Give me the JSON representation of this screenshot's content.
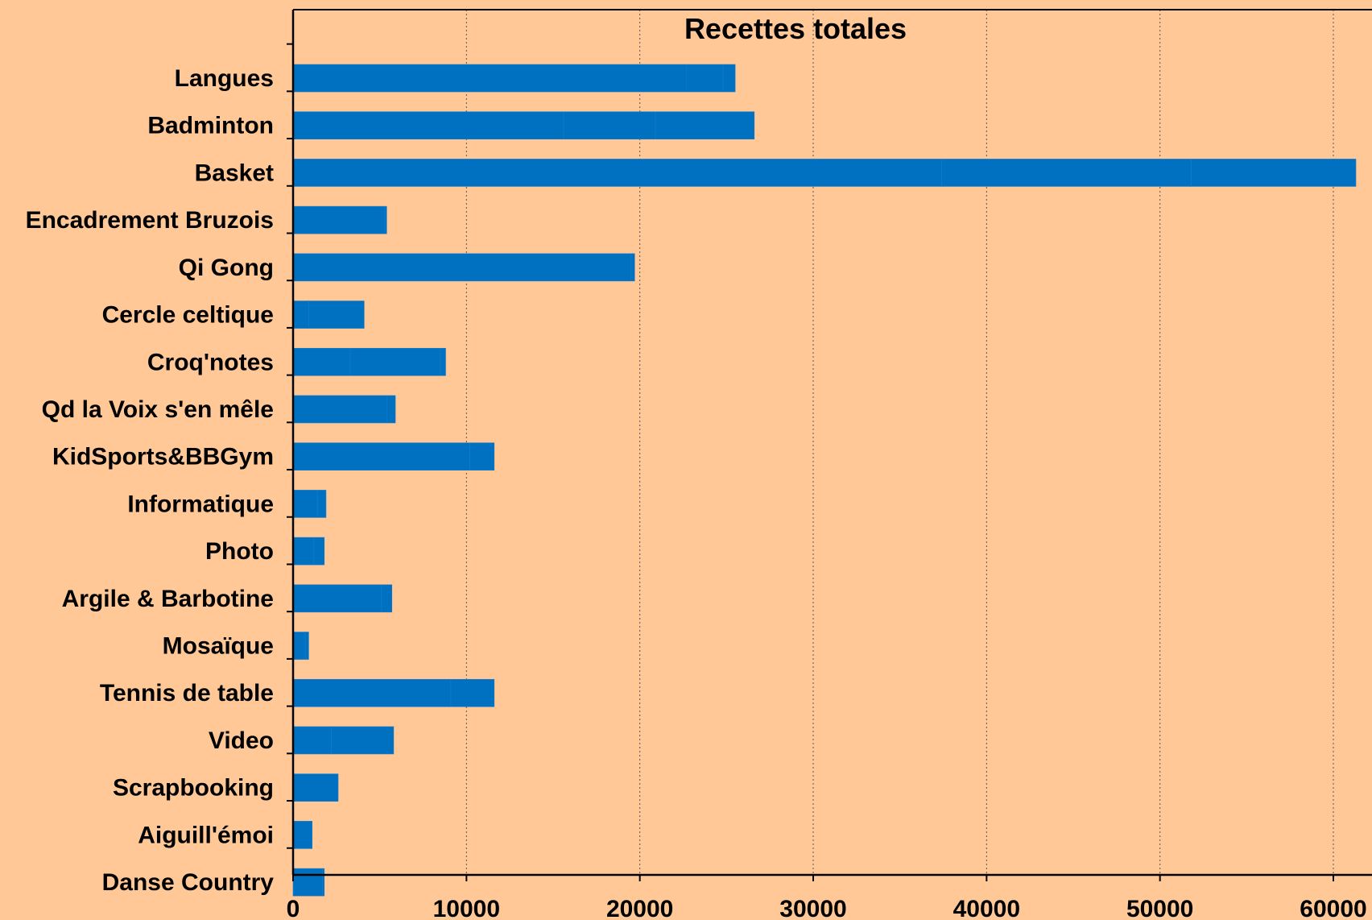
{
  "chart_data": {
    "type": "bar",
    "orientation": "horizontal",
    "stacked": true,
    "title": "Recettes totales",
    "xlabel": "",
    "ylabel": "",
    "xlim": [
      0,
      62000
    ],
    "x_ticks": [
      0,
      10000,
      20000,
      30000,
      40000,
      50000,
      60000
    ],
    "grid": "vertical-dotted",
    "bar_color": "#0070C0",
    "background_color": "#FFC896",
    "categories": [
      "Langues",
      "Badminton",
      "Basket",
      "Encadrement Bruzois",
      "Qi Gong",
      "Cercle celtique",
      "Croq'notes",
      "Qd la Voix s'en mêle",
      "KidSports&BBGym",
      "Informatique",
      "Photo",
      "Argile & Barbotine",
      "Mosaïque",
      "Tennis de table",
      "Video",
      "Scrapbooking",
      "Aiguill'émoi",
      "Danse Country"
    ],
    "segments": [
      [
        22700,
        2100,
        700
      ],
      [
        15600,
        5300,
        5700
      ],
      [
        37400,
        14400,
        9500
      ],
      [
        5300,
        100
      ],
      [
        19500,
        200
      ],
      [
        900,
        3200
      ],
      [
        3300,
        5200,
        300
      ],
      [
        5400,
        500
      ],
      [
        10200,
        1400
      ],
      [
        1400,
        500
      ],
      [
        1200,
        600
      ],
      [
        5100,
        600
      ],
      [
        700,
        200
      ],
      [
        9100,
        2500
      ],
      [
        2200,
        3600
      ],
      [
        2600
      ],
      [
        1100
      ],
      [
        1700,
        100
      ]
    ]
  }
}
